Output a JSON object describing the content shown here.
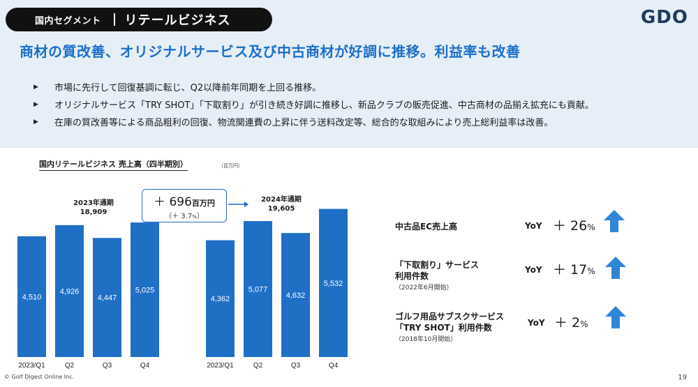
{
  "header": {
    "segment": "国内セグメント",
    "business": "リテールビジネス",
    "logo": "GDO"
  },
  "headline": "商材の質改善、オリジナルサービス及び中古商材が好調に推移。利益率も改善",
  "bullets": [
    "市場に先行して回復基調に転じ、Q2以降前年同期を上回る推移。",
    "オリジナルサービス「TRY SHOT」「下取割り」が引き続き好調に推移し、新品クラブの販売促進、中古商材の品揃え拡充にも貢献。",
    "在庫の質改善等による商品粗利の回復、物流関連費の上昇に伴う送料改定等、総合的な取組みにより売上総利益率は改善。"
  ],
  "chart_data": {
    "type": "bar",
    "title": "国内リテールビジネス 売上高（四半期別）",
    "unit": "（百万円）",
    "categories": [
      "2023/Q1",
      "Q2",
      "Q3",
      "Q4",
      "2023/Q1",
      "Q2",
      "Q3",
      "Q4"
    ],
    "values": [
      4510,
      4926,
      4447,
      5025,
      4362,
      5077,
      4632,
      5532
    ],
    "value_labels": [
      "4,510",
      "4,926",
      "4,447",
      "5,025",
      "4,362",
      "5,077",
      "4,632",
      "5,532"
    ],
    "bar_color": "#1f6fc5",
    "groups": [
      {
        "label": "2023年通期",
        "total": "18,909"
      },
      {
        "label": "2024年通期",
        "total": "19,605"
      }
    ],
    "delta": {
      "main": "＋ 696",
      "main_unit": "百万円",
      "sub": "（＋ 3.7",
      "sub_unit": "%",
      "sub_close": "）"
    }
  },
  "kpis": [
    {
      "label_lines": [
        "中古品EC売上高"
      ],
      "note": "",
      "yoy": "YoY",
      "value": "＋ 26",
      "unit": "%"
    },
    {
      "label_lines": [
        "「下取割り」サービス",
        "利用件数"
      ],
      "note": "（2022年6月開始）",
      "yoy": "YoY",
      "value": "＋ 17",
      "unit": "%"
    },
    {
      "label_lines": [
        "ゴルフ用品サブスクサービス",
        "「TRY SHOT」利用件数"
      ],
      "note": "（2018年10月開始）",
      "yoy": "YoY",
      "value": "＋  2",
      "unit": "%"
    }
  ],
  "colors": {
    "accent": "#1b6fc9",
    "arrow": "#2f86d6",
    "band": "#e6eef7"
  },
  "footer": {
    "copyright": "© Golf Digest Online Inc.",
    "page": "19"
  }
}
